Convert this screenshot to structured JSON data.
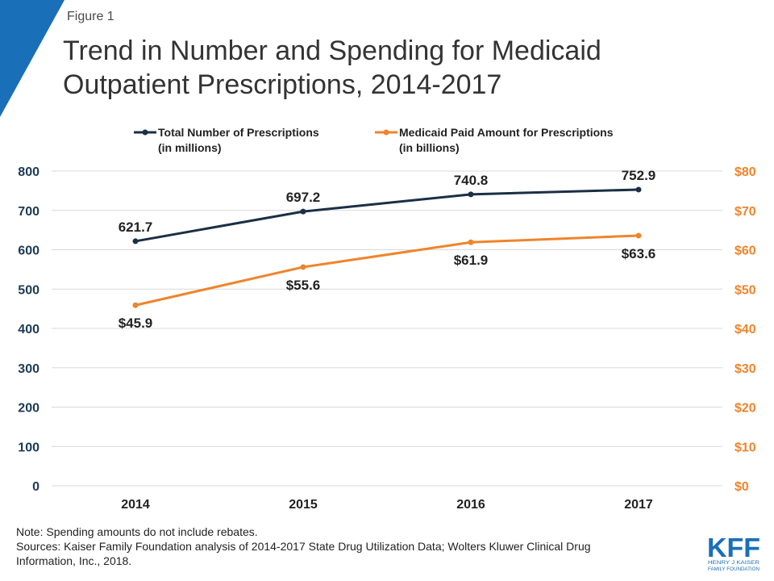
{
  "figure_label": "Figure 1",
  "title_lines": [
    "Trend in Number and Spending for Medicaid",
    "Outpatient Prescriptions, 2014-2017"
  ],
  "colors": {
    "navy": "#1b2f45",
    "orange": "#f0842b",
    "left_axis": "#1b3a57",
    "right_axis": "#f0842b",
    "grid": "#d9d9d9",
    "brand_blue": "#1a6fb9"
  },
  "legend": [
    {
      "line1": "Total Number of Prescriptions",
      "line2": "(in millions)"
    },
    {
      "line1": "Medicaid Paid Amount for Prescriptions",
      "line2": "(in billions)"
    }
  ],
  "chart_data": {
    "type": "line",
    "categories": [
      "2014",
      "2015",
      "2016",
      "2017"
    ],
    "series": [
      {
        "name": "Total Number of Prescriptions (in millions)",
        "axis": "left",
        "values": [
          621.7,
          697.2,
          740.8,
          752.9
        ],
        "labels": [
          "621.7",
          "697.2",
          "740.8",
          "752.9"
        ]
      },
      {
        "name": "Medicaid Paid Amount for Prescriptions (in billions)",
        "axis": "right",
        "values": [
          45.9,
          55.6,
          61.9,
          63.6
        ],
        "labels": [
          "$45.9",
          "$55.6",
          "$61.9",
          "$63.6"
        ]
      }
    ],
    "left_axis": {
      "ylim": [
        0,
        800
      ],
      "ticks": [
        "0",
        "100",
        "200",
        "300",
        "400",
        "500",
        "600",
        "700",
        "800"
      ]
    },
    "right_axis": {
      "ylim": [
        0,
        80
      ],
      "ticks": [
        "$0",
        "$10",
        "$20",
        "$30",
        "$40",
        "$50",
        "$60",
        "$70",
        "$80"
      ]
    },
    "grid": true,
    "legend_position": "top"
  },
  "note_lines": [
    "Note: Spending amounts do not include rebates.",
    "Sources: Kaiser Family Foundation analysis of 2014-2017 State Drug Utilization Data; Wolters Kluwer Clinical Drug",
    "Information, Inc., 2018."
  ],
  "logo": {
    "letters": "KFF",
    "line1": "HENRY J KAISER",
    "line2": "FAMILY FOUNDATION"
  }
}
